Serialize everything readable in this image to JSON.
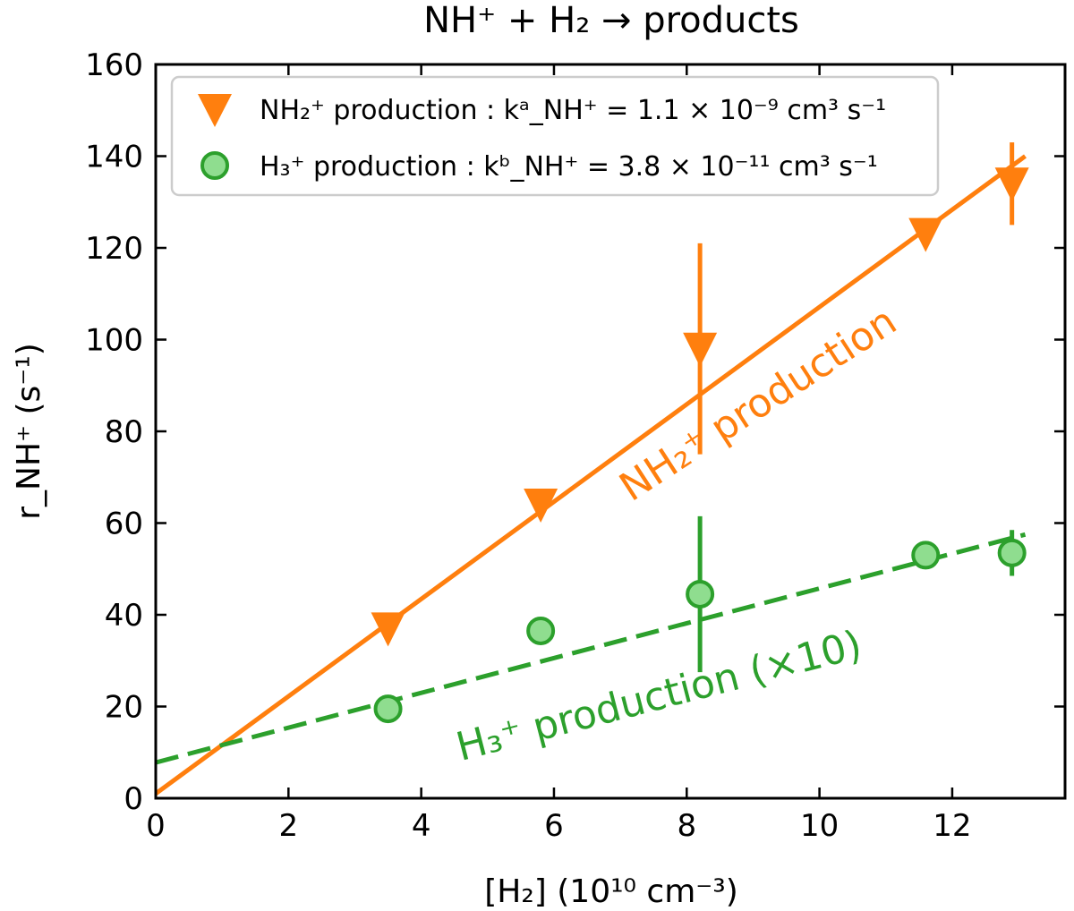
{
  "chart_data": {
    "type": "scatter",
    "title": "NH⁺ + H₂ → products",
    "xlabel": "[H₂] (10¹⁰ cm⁻³)",
    "ylabel": "r_NH⁺ (s⁻¹)",
    "xlim": [
      0,
      13.7
    ],
    "ylim": [
      0,
      160
    ],
    "xticks": [
      0,
      2,
      4,
      6,
      8,
      10,
      12
    ],
    "yticks": [
      0,
      20,
      40,
      60,
      80,
      100,
      120,
      140,
      160
    ],
    "grid": false,
    "legend_position": "top-left",
    "series": [
      {
        "name": "NH₂⁺ production : kᵃ_NH⁺ = 1.1 × 10⁻⁹ cm³ s⁻¹",
        "marker": "triangle-down",
        "color": "#ff7f0e",
        "x": [
          3.5,
          5.8,
          8.2,
          11.6,
          12.9
        ],
        "y": [
          37,
          64,
          98,
          123,
          134
        ],
        "yerr": [
          3,
          2,
          23,
          2,
          9
        ],
        "fit": {
          "style": "solid",
          "x": [
            0,
            13.1
          ],
          "y": [
            1,
            140
          ]
        },
        "line_label": "NH₂⁺ production"
      },
      {
        "name": "H₃⁺ production : kᵇ_NH⁺ = 3.8 × 10⁻¹¹ cm³ s⁻¹",
        "marker": "circle",
        "color": "#2ca02c",
        "fill": "#8fdd8f",
        "x": [
          3.5,
          5.8,
          8.2,
          11.6,
          12.9
        ],
        "y": [
          19.5,
          36.5,
          44.5,
          53,
          53.5
        ],
        "yerr": [
          1.5,
          3,
          17,
          1,
          5
        ],
        "fit": {
          "style": "dashed",
          "x": [
            0,
            13.1
          ],
          "y": [
            7.8,
            57.5
          ]
        },
        "line_label": "H₃⁺ production (×10)"
      }
    ]
  }
}
